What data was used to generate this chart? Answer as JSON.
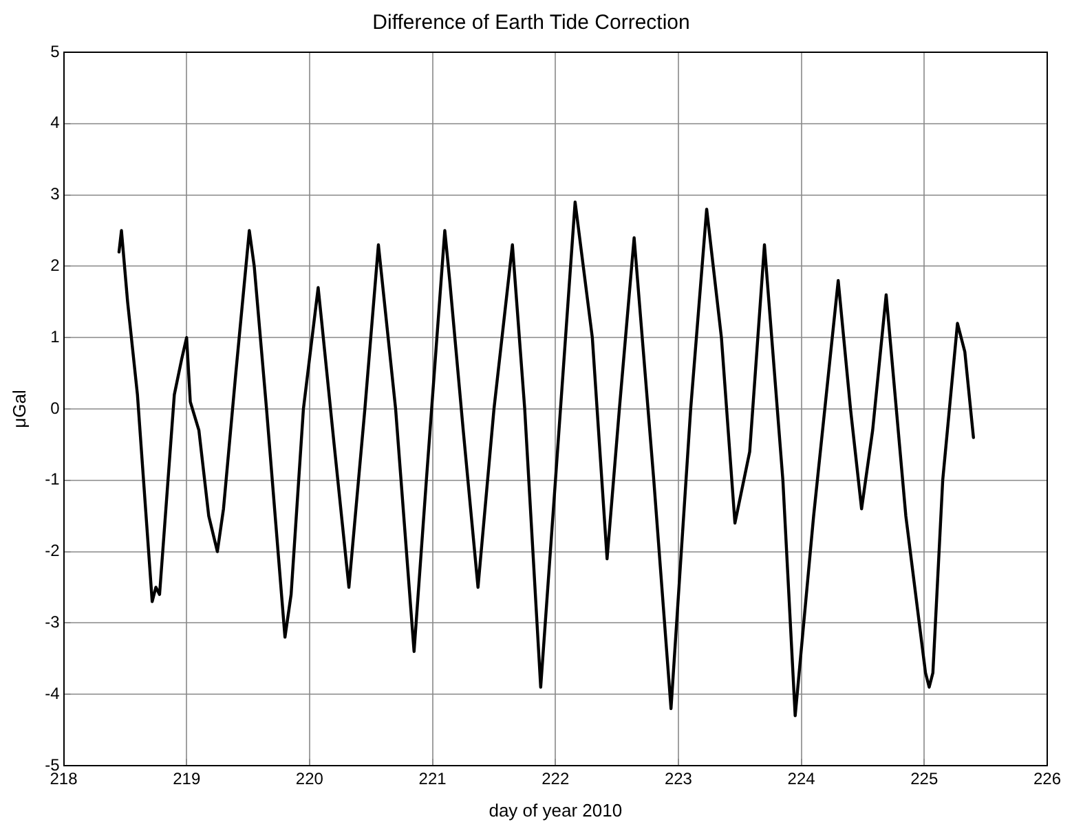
{
  "chart_data": {
    "type": "line",
    "title": "Difference of Earth Tide Correction",
    "xlabel": "day of year 2010",
    "ylabel": "μGal",
    "series": [
      {
        "color": "#000000",
        "x": [
          218.45,
          218.47,
          218.52,
          218.6,
          218.72,
          218.75,
          218.78,
          218.9,
          218.96,
          219.0,
          219.03,
          219.1,
          219.18,
          219.25,
          219.3,
          219.4,
          219.51,
          219.55,
          219.65,
          219.8,
          219.85,
          219.95,
          220.07,
          220.1,
          220.2,
          220.32,
          220.45,
          220.56,
          220.7,
          220.85,
          220.95,
          221.1,
          221.14,
          221.25,
          221.37,
          221.5,
          221.65,
          221.75,
          221.88,
          222.0,
          222.16,
          222.3,
          222.42,
          222.52,
          222.64,
          222.8,
          222.94,
          223.1,
          223.23,
          223.35,
          223.46,
          223.58,
          223.7,
          223.85,
          223.95,
          224.1,
          224.3,
          224.4,
          224.49,
          224.58,
          224.69,
          224.85,
          225.01,
          225.04,
          225.07,
          225.15,
          225.27,
          225.33,
          225.4
        ],
        "values": [
          2.2,
          2.5,
          1.5,
          0.2,
          -2.7,
          -2.5,
          -2.6,
          0.2,
          0.7,
          1.0,
          0.1,
          -0.3,
          -1.5,
          -2.0,
          -1.4,
          0.5,
          2.5,
          2.0,
          0.0,
          -3.2,
          -2.6,
          0.0,
          1.7,
          1.2,
          -0.5,
          -2.5,
          0.0,
          2.3,
          0.0,
          -3.4,
          -1.0,
          2.5,
          1.8,
          -0.3,
          -2.5,
          0.0,
          2.3,
          0.0,
          -3.9,
          -1.0,
          2.9,
          1.0,
          -2.1,
          0.0,
          2.4,
          -1.0,
          -4.2,
          0.0,
          2.8,
          1.0,
          -1.6,
          -0.6,
          2.3,
          -1.0,
          -4.3,
          -1.5,
          1.8,
          0.0,
          -1.4,
          -0.3,
          1.6,
          -1.5,
          -3.7,
          -3.9,
          -3.7,
          -1.0,
          1.2,
          0.8,
          -0.4
        ]
      }
    ],
    "xlim": [
      218,
      226
    ],
    "xticks": [
      218,
      219,
      220,
      221,
      222,
      223,
      224,
      225,
      226
    ],
    "ylim": [
      -5,
      5
    ],
    "yticks": [
      -5,
      -4,
      -3,
      -2,
      -1,
      0,
      1,
      2,
      3,
      4,
      5
    ],
    "grid": true,
    "legend": false,
    "line_style": "solid",
    "marker": "none"
  }
}
